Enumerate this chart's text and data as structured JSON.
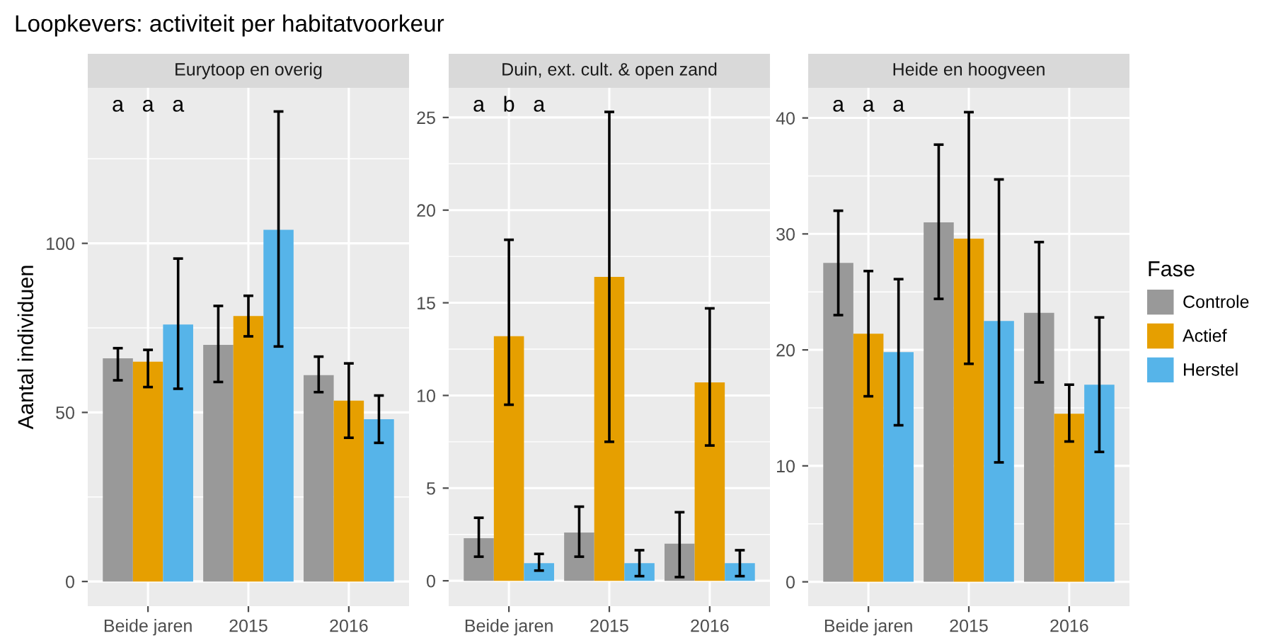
{
  "chart_data": [
    {
      "type": "bar",
      "title": "Eurytoop en overig",
      "ylabel": "Aantal individuen",
      "categories": [
        "Beide jaren",
        "2015",
        "2016"
      ],
      "ylim": [
        -7.3,
        146
      ],
      "yticks": [
        0,
        50,
        100
      ],
      "grid": true,
      "legend": "right",
      "legend_title": "Fase",
      "annotations": [
        "Loopkevers: activiteit per habitatvoorkeur",
        "a",
        "a",
        "a"
      ],
      "series": [
        {
          "name": "Controle",
          "color": "#999999",
          "values": [
            66,
            70,
            61
          ],
          "errors": [
            [
              59.5,
              69
            ],
            [
              59,
              81.5
            ],
            [
              56,
              66.5
            ]
          ]
        },
        {
          "name": "Actief",
          "color": "#e69f00",
          "values": [
            65,
            78.5,
            53.5
          ],
          "errors": [
            [
              57.5,
              68.5
            ],
            [
              72.5,
              84.5
            ],
            [
              42.5,
              64.5
            ]
          ]
        },
        {
          "name": "Herstel",
          "color": "#56b4e9",
          "values": [
            76,
            104,
            48
          ],
          "errors": [
            [
              57,
              95.5
            ],
            [
              69.5,
              139
            ],
            [
              41,
              55
            ]
          ]
        }
      ]
    },
    {
      "type": "bar",
      "title": "Duin, ext. cult. & open zand",
      "categories": [
        "Beide jaren",
        "2015",
        "2016"
      ],
      "ylim": [
        -1.37,
        26.6
      ],
      "yticks": [
        0,
        5,
        10,
        15,
        20,
        25
      ],
      "grid": true,
      "annotations": [
        "a",
        "b",
        "a"
      ],
      "series": [
        {
          "color": "#999999",
          "values": [
            2.3,
            2.6,
            2.0
          ],
          "errors": [
            [
              1.3,
              3.4
            ],
            [
              1.3,
              4.0
            ],
            [
              0.2,
              3.7
            ]
          ]
        },
        {
          "color": "#e69f00",
          "values": [
            13.2,
            16.4,
            10.7
          ],
          "errors": [
            [
              9.5,
              18.4
            ],
            [
              7.5,
              25.3
            ],
            [
              7.3,
              14.7
            ]
          ]
        },
        {
          "color": "#56b4e9",
          "values": [
            0.95,
            0.95,
            0.95
          ],
          "errors": [
            [
              0.55,
              1.45
            ],
            [
              0.25,
              1.65
            ],
            [
              0.25,
              1.65
            ]
          ]
        }
      ]
    },
    {
      "type": "bar",
      "title": "Heide en hoogveen",
      "categories": [
        "Beide jaren",
        "2015",
        "2016"
      ],
      "ylim": [
        -2.1,
        42.6
      ],
      "yticks": [
        0,
        10,
        20,
        30,
        40
      ],
      "grid": true,
      "annotations": [
        "a",
        "a",
        "a"
      ],
      "series": [
        {
          "color": "#999999",
          "values": [
            27.5,
            31,
            23.2
          ],
          "errors": [
            [
              23,
              32
            ],
            [
              24.4,
              37.7
            ],
            [
              17.2,
              29.3
            ]
          ]
        },
        {
          "color": "#e69f00",
          "values": [
            21.4,
            29.6,
            14.5
          ],
          "errors": [
            [
              16,
              26.8
            ],
            [
              18.8,
              40.5
            ],
            [
              12.1,
              17
            ]
          ]
        },
        {
          "color": "#56b4e9",
          "values": [
            19.8,
            22.5,
            17
          ],
          "errors": [
            [
              13.5,
              26.1
            ],
            [
              10.3,
              34.7
            ],
            [
              11.2,
              22.8
            ]
          ]
        }
      ]
    }
  ]
}
